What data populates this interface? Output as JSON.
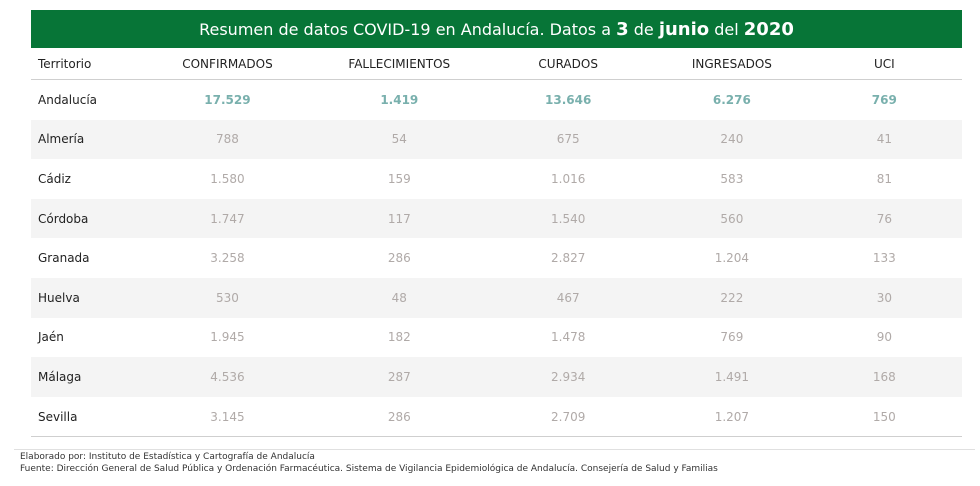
{
  "title": {
    "prefix": "Resumen de datos COVID-19 en Andalucía. Datos a ",
    "day": "3",
    "de": " de ",
    "month": "junio",
    "del": " del ",
    "year": "2020"
  },
  "columns": [
    "Territorio",
    "CONFIRMADOS",
    "FALLECIMIENTOS",
    "CURADOS",
    "INGRESADOS",
    "UCI"
  ],
  "rows": [
    [
      "Andalucía",
      "17.529",
      "1.419",
      "13.646",
      "6.276",
      "769"
    ],
    [
      "Almería",
      "788",
      "54",
      "675",
      "240",
      "41"
    ],
    [
      "Cádiz",
      "1.580",
      "159",
      "1.016",
      "583",
      "81"
    ],
    [
      "Córdoba",
      "1.747",
      "117",
      "1.540",
      "560",
      "76"
    ],
    [
      "Granada",
      "3.258",
      "286",
      "2.827",
      "1.204",
      "133"
    ],
    [
      "Huelva",
      "530",
      "48",
      "467",
      "222",
      "30"
    ],
    [
      "Jaén",
      "1.945",
      "182",
      "1.478",
      "769",
      "90"
    ],
    [
      "Málaga",
      "4.536",
      "287",
      "2.934",
      "1.491",
      "168"
    ],
    [
      "Sevilla",
      "3.145",
      "286",
      "2.709",
      "1.207",
      "150"
    ]
  ],
  "footer": {
    "elaborado": "Elaborado por: Instituto de Estadística y Cartografía de Andalucía",
    "fuente": "Fuente: Dirección General de Salud Pública y Ordenación Farmacéutica. Sistema de Vigilancia Epidemiológica de Andalucía. Consejería de Salud y Familias"
  },
  "colors": {
    "banner": "#077537",
    "total_values": "#79b0ad",
    "values": "#b0aaa8"
  }
}
